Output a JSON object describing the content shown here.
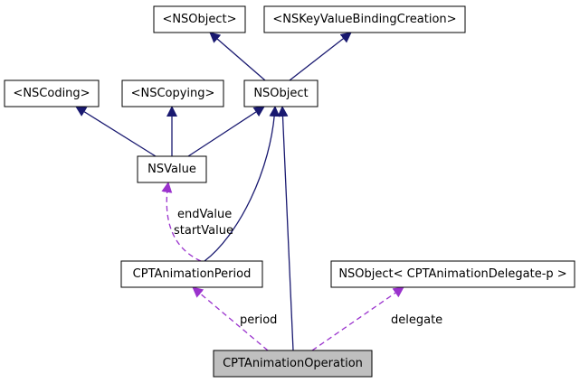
{
  "diagram": {
    "colors": {
      "inheritance_edge": "#191970",
      "usage_edge": "#9a32cd",
      "highlight_fill": "#bfbfbf",
      "node_border": "#000000",
      "background": "#ffffff"
    },
    "nodes": {
      "nsobject_protocol": {
        "label": "<NSObject>"
      },
      "nskeyvaluebindingcreation": {
        "label": "<NSKeyValueBindingCreation>"
      },
      "nscoding": {
        "label": "<NSCoding>"
      },
      "nscopying": {
        "label": "<NSCopying>"
      },
      "nsobject": {
        "label": "NSObject"
      },
      "nsvalue": {
        "label": "NSValue"
      },
      "cptanimationperiod": {
        "label": "CPTAnimationPeriod"
      },
      "nsobject_delegate": {
        "label": "NSObject< CPTAnimationDelegate-p >"
      },
      "cptanimationoperation": {
        "label": "CPTAnimationOperation"
      }
    },
    "edge_labels": {
      "endvalue": "endValue",
      "startvalue": "startValue",
      "period": "period",
      "delegate": "delegate"
    }
  }
}
